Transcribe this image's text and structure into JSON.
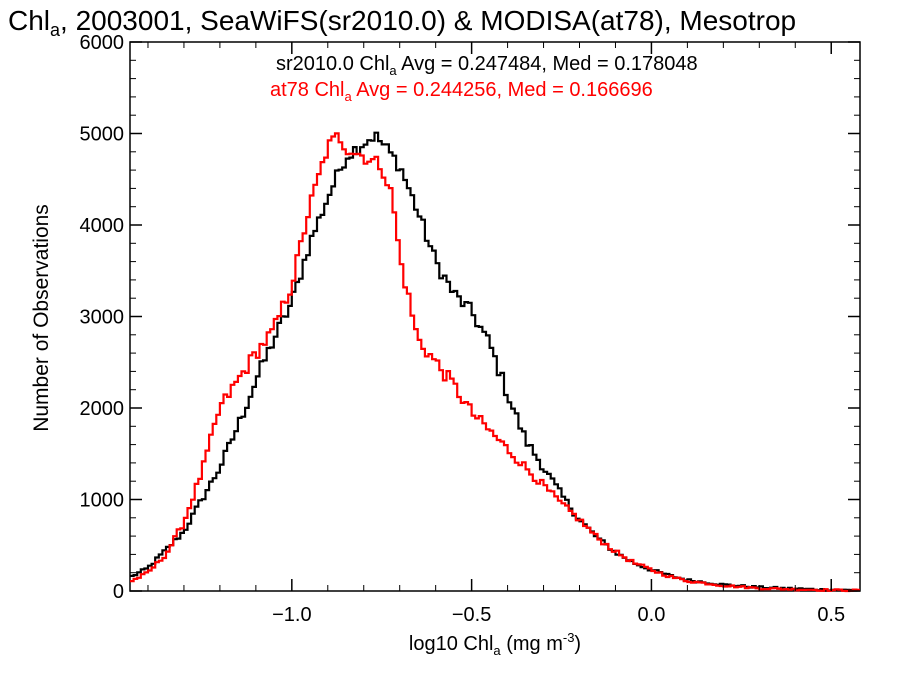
{
  "chart_data": {
    "type": "line",
    "title": {
      "pre": "Chl",
      "sub": "a",
      "post": ", 2003001, SeaWiFS(sr2010.0) & MODISA(at78), Mesotrop"
    },
    "xlabel": {
      "pre": "log10 Chl",
      "sub": "a",
      "mid": " (mg m",
      "sup": "-3",
      "post": ")"
    },
    "ylabel": "Number of Observations",
    "xlim": [
      -1.45,
      0.58
    ],
    "ylim": [
      0,
      6000
    ],
    "x_ticks": [
      {
        "value": -1.0,
        "label": "−1.0"
      },
      {
        "value": -0.5,
        "label": "−0.5"
      },
      {
        "value": 0.0,
        "label": "0.0"
      },
      {
        "value": 0.5,
        "label": "0.5"
      }
    ],
    "y_ticks": [
      {
        "value": 0,
        "label": "0"
      },
      {
        "value": 1000,
        "label": "1000"
      },
      {
        "value": 2000,
        "label": "2000"
      },
      {
        "value": 3000,
        "label": "3000"
      },
      {
        "value": 4000,
        "label": "4000"
      },
      {
        "value": 5000,
        "label": "5000"
      },
      {
        "value": 6000,
        "label": "6000"
      }
    ],
    "annotations": [
      {
        "pre": "sr2010.0 Chl",
        "sub": "a",
        "post": " Avg = 0.247484, Med = 0.178048",
        "color": "#000000"
      },
      {
        "pre": "at78 Chl",
        "sub": "a",
        "post": " Avg = 0.244256, Med = 0.166696",
        "color": "#ff0000"
      }
    ],
    "series": [
      {
        "color": "#000000",
        "x": [
          -1.45,
          -1.4,
          -1.35,
          -1.3,
          -1.25,
          -1.2,
          -1.15,
          -1.1,
          -1.05,
          -1.0,
          -0.95,
          -0.9,
          -0.85,
          -0.8,
          -0.77,
          -0.75,
          -0.72,
          -0.7,
          -0.65,
          -0.6,
          -0.55,
          -0.5,
          -0.45,
          -0.4,
          -0.35,
          -0.3,
          -0.25,
          -0.2,
          -0.15,
          -0.1,
          -0.05,
          0.0,
          0.05,
          0.1,
          0.2,
          0.3,
          0.4,
          0.5,
          0.58
        ],
        "y": [
          150,
          250,
          450,
          650,
          1000,
          1350,
          1800,
          2300,
          2750,
          3150,
          3800,
          4300,
          4750,
          4900,
          4980,
          4900,
          4750,
          4650,
          4150,
          3600,
          3250,
          3050,
          2700,
          2150,
          1650,
          1350,
          1050,
          780,
          580,
          420,
          310,
          230,
          170,
          120,
          70,
          40,
          25,
          12,
          8
        ]
      },
      {
        "color": "#ff0000",
        "x": [
          -1.45,
          -1.4,
          -1.35,
          -1.3,
          -1.25,
          -1.2,
          -1.15,
          -1.1,
          -1.05,
          -1.0,
          -0.95,
          -0.9,
          -0.87,
          -0.85,
          -0.8,
          -0.75,
          -0.72,
          -0.7,
          -0.65,
          -0.6,
          -0.55,
          -0.5,
          -0.45,
          -0.4,
          -0.35,
          -0.3,
          -0.25,
          -0.2,
          -0.15,
          -0.1,
          -0.05,
          0.0,
          0.05,
          0.1,
          0.2,
          0.3,
          0.4,
          0.5,
          0.58
        ],
        "y": [
          100,
          200,
          400,
          750,
          1300,
          2000,
          2300,
          2600,
          2850,
          3350,
          4200,
          4850,
          4980,
          4850,
          4750,
          4650,
          4300,
          3650,
          2750,
          2500,
          2250,
          1950,
          1750,
          1550,
          1350,
          1150,
          950,
          780,
          580,
          430,
          310,
          230,
          160,
          110,
          60,
          30,
          18,
          10,
          6
        ]
      }
    ]
  }
}
